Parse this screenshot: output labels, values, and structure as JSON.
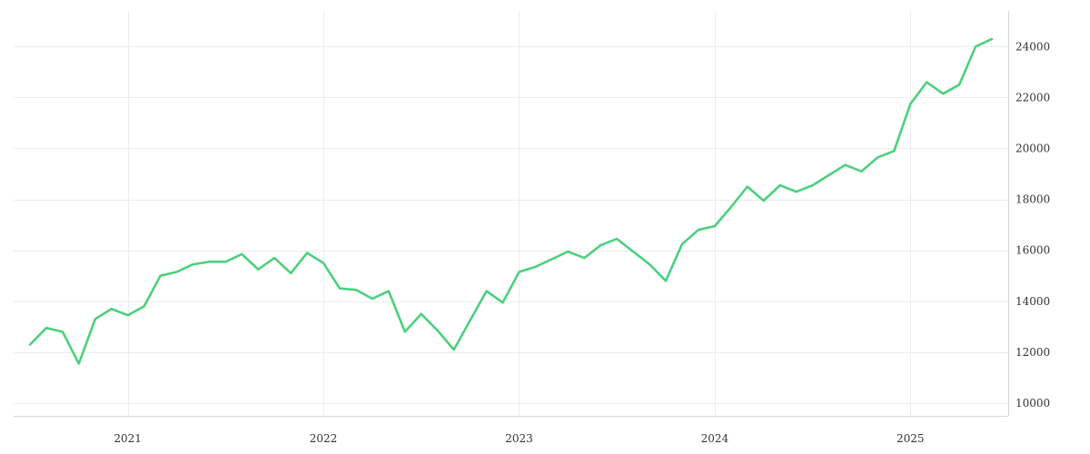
{
  "chart_data": {
    "type": "line",
    "title": "",
    "xlabel": "",
    "ylabel": "",
    "grid": true,
    "y_axis_side": "right",
    "x_tick_labels": [
      "2021",
      "2022",
      "2023",
      "2024",
      "2025"
    ],
    "y_tick_labels": [
      "10000",
      "12000",
      "14000",
      "16000",
      "18000",
      "20000",
      "22000",
      "24000"
    ],
    "x_range": [
      "2020-06-01",
      "2025-07-01"
    ],
    "ylim": [
      9500,
      25400
    ],
    "series": [
      {
        "color": "#4cd07d",
        "points": [
          [
            "2020-07",
            12300
          ],
          [
            "2020-08",
            12950
          ],
          [
            "2020-09",
            12800
          ],
          [
            "2020-10",
            11550
          ],
          [
            "2020-11",
            13300
          ],
          [
            "2020-12",
            13700
          ],
          [
            "2021-01",
            13450
          ],
          [
            "2021-02",
            13800
          ],
          [
            "2021-03",
            15000
          ],
          [
            "2021-04",
            15150
          ],
          [
            "2021-05",
            15450
          ],
          [
            "2021-06",
            15550
          ],
          [
            "2021-07",
            15550
          ],
          [
            "2021-08",
            15850
          ],
          [
            "2021-09",
            15250
          ],
          [
            "2021-10",
            15700
          ],
          [
            "2021-11",
            15100
          ],
          [
            "2021-12",
            15900
          ],
          [
            "2022-01",
            15500
          ],
          [
            "2022-02",
            14500
          ],
          [
            "2022-03",
            14450
          ],
          [
            "2022-04",
            14100
          ],
          [
            "2022-05",
            14400
          ],
          [
            "2022-06",
            12800
          ],
          [
            "2022-07",
            13500
          ],
          [
            "2022-08",
            12850
          ],
          [
            "2022-09",
            12100
          ],
          [
            "2022-10",
            13250
          ],
          [
            "2022-11",
            14400
          ],
          [
            "2022-12",
            13950
          ],
          [
            "2023-01",
            15150
          ],
          [
            "2023-02",
            15350
          ],
          [
            "2023-03",
            15650
          ],
          [
            "2023-04",
            15950
          ],
          [
            "2023-05",
            15700
          ],
          [
            "2023-06",
            16200
          ],
          [
            "2023-07",
            16450
          ],
          [
            "2023-08",
            15950
          ],
          [
            "2023-09",
            15450
          ],
          [
            "2023-10",
            14800
          ],
          [
            "2023-11",
            16250
          ],
          [
            "2023-12",
            16800
          ],
          [
            "2024-01",
            16950
          ],
          [
            "2024-02",
            17700
          ],
          [
            "2024-03",
            18500
          ],
          [
            "2024-04",
            17950
          ],
          [
            "2024-05",
            18550
          ],
          [
            "2024-06",
            18300
          ],
          [
            "2024-07",
            18550
          ],
          [
            "2024-08",
            18950
          ],
          [
            "2024-09",
            19350
          ],
          [
            "2024-10",
            19100
          ],
          [
            "2024-11",
            19650
          ],
          [
            "2024-12",
            19900
          ],
          [
            "2025-01",
            21750
          ],
          [
            "2025-02",
            22600
          ],
          [
            "2025-03",
            22150
          ],
          [
            "2025-04",
            22500
          ],
          [
            "2025-05",
            24000
          ],
          [
            "2025-06",
            24300
          ]
        ]
      }
    ]
  }
}
